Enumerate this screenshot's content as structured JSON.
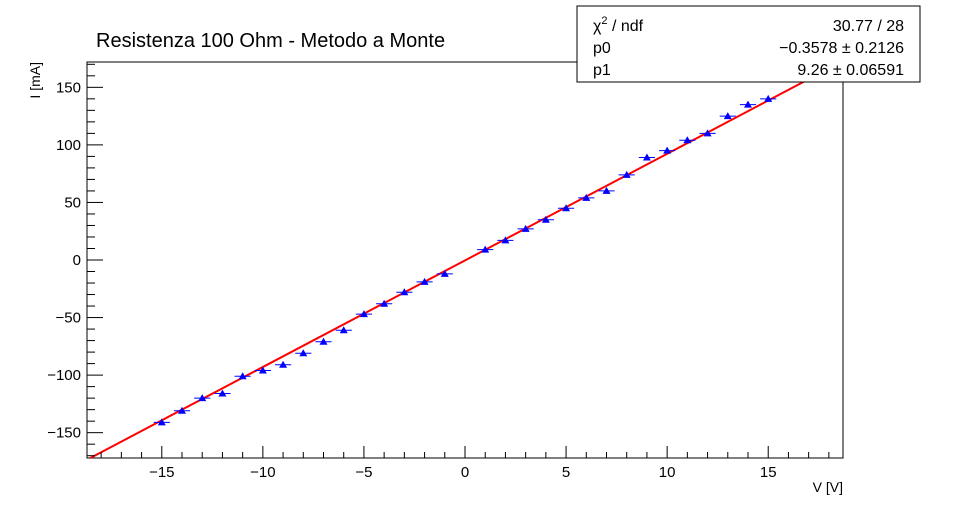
{
  "chart_data": {
    "type": "scatter",
    "title": "Resistenza 100 Ohm - Metodo a Monte",
    "xlabel": "V [V]",
    "ylabel": "I [mA]",
    "xlim": [
      -18.7,
      18.7
    ],
    "ylim": [
      -172,
      172
    ],
    "x_ticks": [
      -15,
      -10,
      -5,
      0,
      5,
      10,
      15
    ],
    "y_ticks": [
      -150,
      -100,
      -50,
      0,
      50,
      100,
      150
    ],
    "x_tick_labels": [
      "−15",
      "−10",
      "−5",
      "0",
      "5",
      "10",
      "15"
    ],
    "y_tick_labels": [
      "−150",
      "−100",
      "−50",
      "0",
      "50",
      "100",
      "150"
    ],
    "x_minor_step": 1,
    "y_minor_step": 10,
    "grid": false,
    "series": [
      {
        "points": [
          {
            "x": -15,
            "y": -141
          },
          {
            "x": -14,
            "y": -131
          },
          {
            "x": -13,
            "y": -120
          },
          {
            "x": -12,
            "y": -116
          },
          {
            "x": -11,
            "y": -101
          },
          {
            "x": -10,
            "y": -96
          },
          {
            "x": -9,
            "y": -91
          },
          {
            "x": -8,
            "y": -81
          },
          {
            "x": -7,
            "y": -71
          },
          {
            "x": -6,
            "y": -61
          },
          {
            "x": -5,
            "y": -47
          },
          {
            "x": -4,
            "y": -38
          },
          {
            "x": -3,
            "y": -28
          },
          {
            "x": -2,
            "y": -19
          },
          {
            "x": -1,
            "y": -12
          },
          {
            "x": 1,
            "y": 9
          },
          {
            "x": 2,
            "y": 17
          },
          {
            "x": 3,
            "y": 27
          },
          {
            "x": 4,
            "y": 35
          },
          {
            "x": 5,
            "y": 45
          },
          {
            "x": 6,
            "y": 54
          },
          {
            "x": 7,
            "y": 60
          },
          {
            "x": 8,
            "y": 74
          },
          {
            "x": 9,
            "y": 89
          },
          {
            "x": 10,
            "y": 95
          },
          {
            "x": 11,
            "y": 104
          },
          {
            "x": 12,
            "y": 110
          },
          {
            "x": 13,
            "y": 125
          },
          {
            "x": 14,
            "y": 135
          },
          {
            "x": 15,
            "y": 140
          }
        ],
        "x_error": 0.4,
        "y_error": 1.5,
        "marker": "triangle-up",
        "color": "#0000ff"
      }
    ],
    "fit": {
      "function": "p0 + p1*x",
      "p0": -0.3578,
      "p1": 9.26,
      "x_range": [
        -18.7,
        18.7
      ],
      "color": "#ff0000"
    },
    "stats_box": {
      "rows": [
        {
          "label_main": "χ",
          "label_sup": "2",
          "label_rest": " / ndf",
          "value": "30.77 / 28"
        },
        {
          "label_main": "p0",
          "label_sup": "",
          "label_rest": "",
          "value": "−0.3578 ± 0.2126"
        },
        {
          "label_main": "p1",
          "label_sup": "",
          "label_rest": "",
          "value": "9.26 ± 0.06591"
        }
      ],
      "placement": "top-right"
    }
  }
}
